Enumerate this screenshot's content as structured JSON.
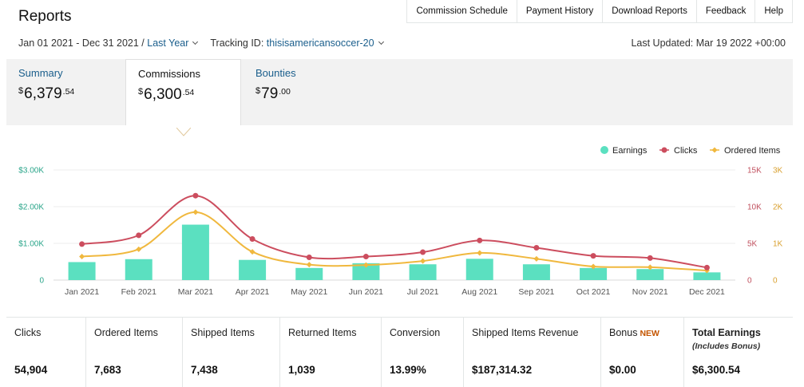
{
  "header": {
    "title": "Reports",
    "nav": [
      "Commission Schedule",
      "Payment History",
      "Download Reports",
      "Feedback",
      "Help"
    ],
    "date_range": "Jan 01 2021 - Dec 31 2021 /",
    "period": "Last Year",
    "tracking_label": "Tracking ID:",
    "tracking_id": "thisisamericansoccer-20",
    "last_updated": "Last Updated: Mar 19 2022 +00:00"
  },
  "tabs": [
    {
      "label": "Summary",
      "currency": "$",
      "whole": "6,379",
      "cents": ".54"
    },
    {
      "label": "Commissions",
      "currency": "$",
      "whole": "6,300",
      "cents": ".54"
    },
    {
      "label": "Bounties",
      "currency": "$",
      "whole": "79",
      "cents": ".00"
    }
  ],
  "colors": {
    "earnings": "#5be0c0",
    "clicks": "#cc4d5e",
    "ordered": "#f0b83e",
    "link": "#1a5e8c",
    "new": "#c45500"
  },
  "chart_data": {
    "type": "bar",
    "categories": [
      "Jan 2021",
      "Feb 2021",
      "Mar 2021",
      "Apr 2021",
      "May 2021",
      "Jun 2021",
      "Jul 2021",
      "Aug 2021",
      "Sep 2021",
      "Oct 2021",
      "Nov 2021",
      "Dec 2021"
    ],
    "series": [
      {
        "name": "Earnings",
        "kind": "bar",
        "axis": "left",
        "values": [
          490,
          570,
          1510,
          550,
          330,
          460,
          430,
          580,
          430,
          330,
          300,
          210
        ]
      },
      {
        "name": "Clicks",
        "kind": "line",
        "axis": "right1",
        "values": [
          4900,
          6100,
          11500,
          5600,
          3100,
          3200,
          3800,
          5400,
          4400,
          3300,
          3000,
          1700
        ]
      },
      {
        "name": "Ordered Items",
        "kind": "line",
        "axis": "right2",
        "values": [
          640,
          840,
          1850,
          770,
          420,
          410,
          520,
          740,
          580,
          370,
          350,
          260
        ]
      }
    ],
    "y_left": {
      "ticks": [
        "0",
        "$1.00K",
        "$2.00K",
        "$3.00K"
      ],
      "max": 3000
    },
    "y_right1": {
      "ticks": [
        "0",
        "5K",
        "10K",
        "15K"
      ],
      "max": 15000
    },
    "y_right2": {
      "ticks": [
        "0",
        "1K",
        "2K",
        "3K"
      ],
      "max": 3000
    },
    "legend": [
      "Earnings",
      "Clicks",
      "Ordered Items"
    ],
    "legend_position": "top-right",
    "grid": true
  },
  "metrics": [
    {
      "label": "Clicks",
      "value": "54,904"
    },
    {
      "label": "Ordered Items",
      "value": "7,683"
    },
    {
      "label": "Shipped Items",
      "value": "7,438"
    },
    {
      "label": "Returned Items",
      "value": "1,039"
    },
    {
      "label": "Conversion",
      "value": "13.99%"
    },
    {
      "label": "Shipped Items Revenue",
      "value": "$187,314.32"
    },
    {
      "label": "Bonus",
      "tag": "NEW",
      "value": "$0.00"
    },
    {
      "label": "Total Earnings",
      "sub": "(Includes Bonus)",
      "value": "$6,300.54"
    }
  ]
}
